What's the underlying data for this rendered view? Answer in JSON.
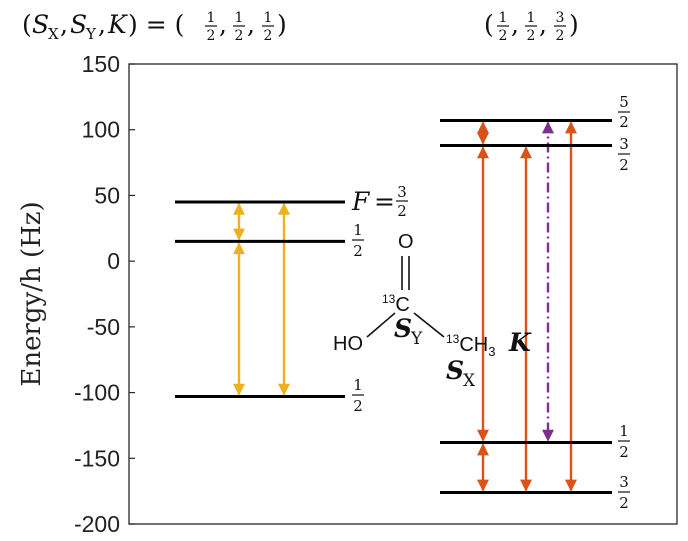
{
  "chart_data": {
    "type": "energy-level-diagram",
    "ylabel": "Energy/h (Hz)",
    "ylim": [
      -200,
      150
    ],
    "yticks": [
      150,
      100,
      50,
      0,
      -50,
      -100,
      -150,
      -200
    ],
    "column_labels": [
      {
        "text": "(S_X, S_Y, K) = (1/2, 1/2, 1/2)"
      },
      {
        "text": "(1/2, 1/2, 3/2)"
      }
    ],
    "manifolds": [
      {
        "levels": [
          {
            "energy": 45,
            "label": "F = 3/2"
          },
          {
            "energy": 15,
            "label": "1/2"
          },
          {
            "energy": -103,
            "label": "1/2"
          }
        ]
      },
      {
        "levels": [
          {
            "energy": 107,
            "label": "5/2"
          },
          {
            "energy": 88,
            "label": "3/2"
          },
          {
            "energy": -138,
            "label": "1/2"
          },
          {
            "energy": -176,
            "label": "3/2"
          }
        ]
      }
    ],
    "transitions": [
      {
        "manifold": 0,
        "from": 45,
        "to": 15,
        "style": "solid",
        "color": "#EDB120"
      },
      {
        "manifold": 0,
        "from": 15,
        "to": -103,
        "style": "solid",
        "color": "#EDB120"
      },
      {
        "manifold": 0,
        "from": 45,
        "to": -103,
        "style": "solid",
        "color": "#EDB120"
      },
      {
        "manifold": 1,
        "from": 107,
        "to": 88,
        "style": "solid",
        "color": "#D95319"
      },
      {
        "manifold": 1,
        "from": 88,
        "to": -138,
        "style": "solid",
        "color": "#D95319"
      },
      {
        "manifold": 1,
        "from": -138,
        "to": -176,
        "style": "solid",
        "color": "#D95319"
      },
      {
        "manifold": 1,
        "from": 88,
        "to": -176,
        "style": "solid",
        "color": "#D95319"
      },
      {
        "manifold": 1,
        "from": 107,
        "to": -138,
        "style": "dashdot",
        "color": "#7E2F8E"
      },
      {
        "manifold": 1,
        "from": 107,
        "to": -176,
        "style": "solid",
        "color": "#D95319"
      }
    ],
    "molecule": {
      "atoms": [
        "O",
        "13C",
        "HO",
        "S_Y",
        "13CH3",
        "K",
        "S_X"
      ]
    }
  }
}
